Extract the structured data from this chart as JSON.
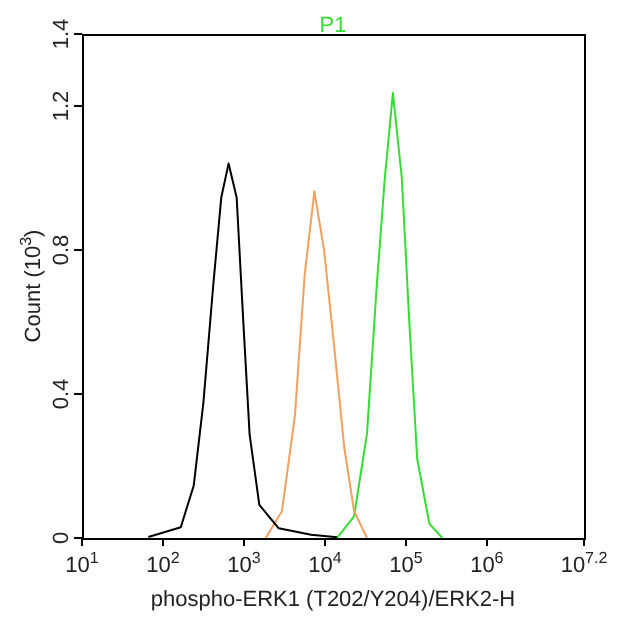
{
  "chart_data": {
    "type": "line",
    "title": "P1",
    "xlabel": "phospho-ERK1 (T202/Y204)/ERK2-H",
    "ylabel": "Count (10$^{3}$)",
    "log": "x",
    "xlim": [
      10,
      15848932
    ],
    "xticks": [
      {
        "value": 10,
        "label": "10$^{1}$"
      },
      {
        "value": 100,
        "label": "10$^{2}$"
      },
      {
        "value": 1000,
        "label": "10$^{3}$"
      },
      {
        "value": 10000,
        "label": "10$^{4}$"
      },
      {
        "value": 100000,
        "label": "10$^{5}$"
      },
      {
        "value": 1000000,
        "label": "10$^{6}$"
      },
      {
        "value": 15848932,
        "label": "10$^{7.2}$"
      }
    ],
    "ylim": [
      0,
      1.4
    ],
    "yticks": [
      0,
      0.4,
      0.8,
      1.2,
      1.4
    ],
    "grid": false,
    "legend": false,
    "series": [
      {
        "color": "#000000",
        "x": [
          66,
          166,
          240,
          316,
          417,
          525,
          646,
          813,
          977,
          1175,
          1549,
          2692,
          6761,
          14125
        ],
        "values": [
          0.003,
          0.03,
          0.146,
          0.377,
          0.7,
          0.946,
          1.04,
          0.946,
          0.61,
          0.288,
          0.092,
          0.027,
          0.009,
          0.002
        ]
      },
      {
        "color": "#f0a060",
        "x": [
          1862,
          2951,
          4266,
          5623,
          7413,
          9772,
          13183,
          17378,
          22909,
          33113
        ],
        "values": [
          0,
          0.075,
          0.34,
          0.73,
          0.963,
          0.8,
          0.52,
          0.25,
          0.075,
          0
        ]
      },
      {
        "color": "#33dd33",
        "x": [
          14125,
          22909,
          33113,
          43652,
          54954,
          69183,
          89125,
          109648,
          138038,
          194984,
          281838
        ],
        "values": [
          0,
          0.06,
          0.29,
          0.7,
          1.0,
          1.236,
          1.0,
          0.61,
          0.22,
          0.04,
          0
        ]
      }
    ]
  }
}
